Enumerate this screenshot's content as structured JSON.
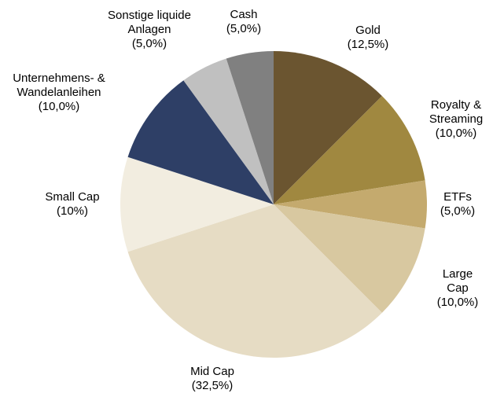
{
  "chart_data": {
    "type": "pie",
    "categories": [
      "Gold",
      "Royalty &\nStreaming",
      "ETFs",
      "Large Cap",
      "Mid Cap",
      "Small Cap",
      "Unternehmens- &\nWandelanleihen",
      "Sonstige liquide\nAnlagen",
      "Cash"
    ],
    "values": [
      12.5,
      10,
      5,
      10,
      32.5,
      10,
      10,
      5,
      5
    ],
    "value_labels": [
      "(12,5%)",
      "(10,0%)",
      "(5,0%)",
      "(10,0%)",
      "(32,5%)",
      "(10%)",
      "(10,0%)",
      "(5,0%)",
      "(5,0%)"
    ],
    "colors": [
      "#6b5530",
      "#a08840",
      "#c4aa6e",
      "#d8c8a0",
      "#e6dcc4",
      "#f2ede0",
      "#2e3f66",
      "#c0c0c0",
      "#808080"
    ]
  }
}
